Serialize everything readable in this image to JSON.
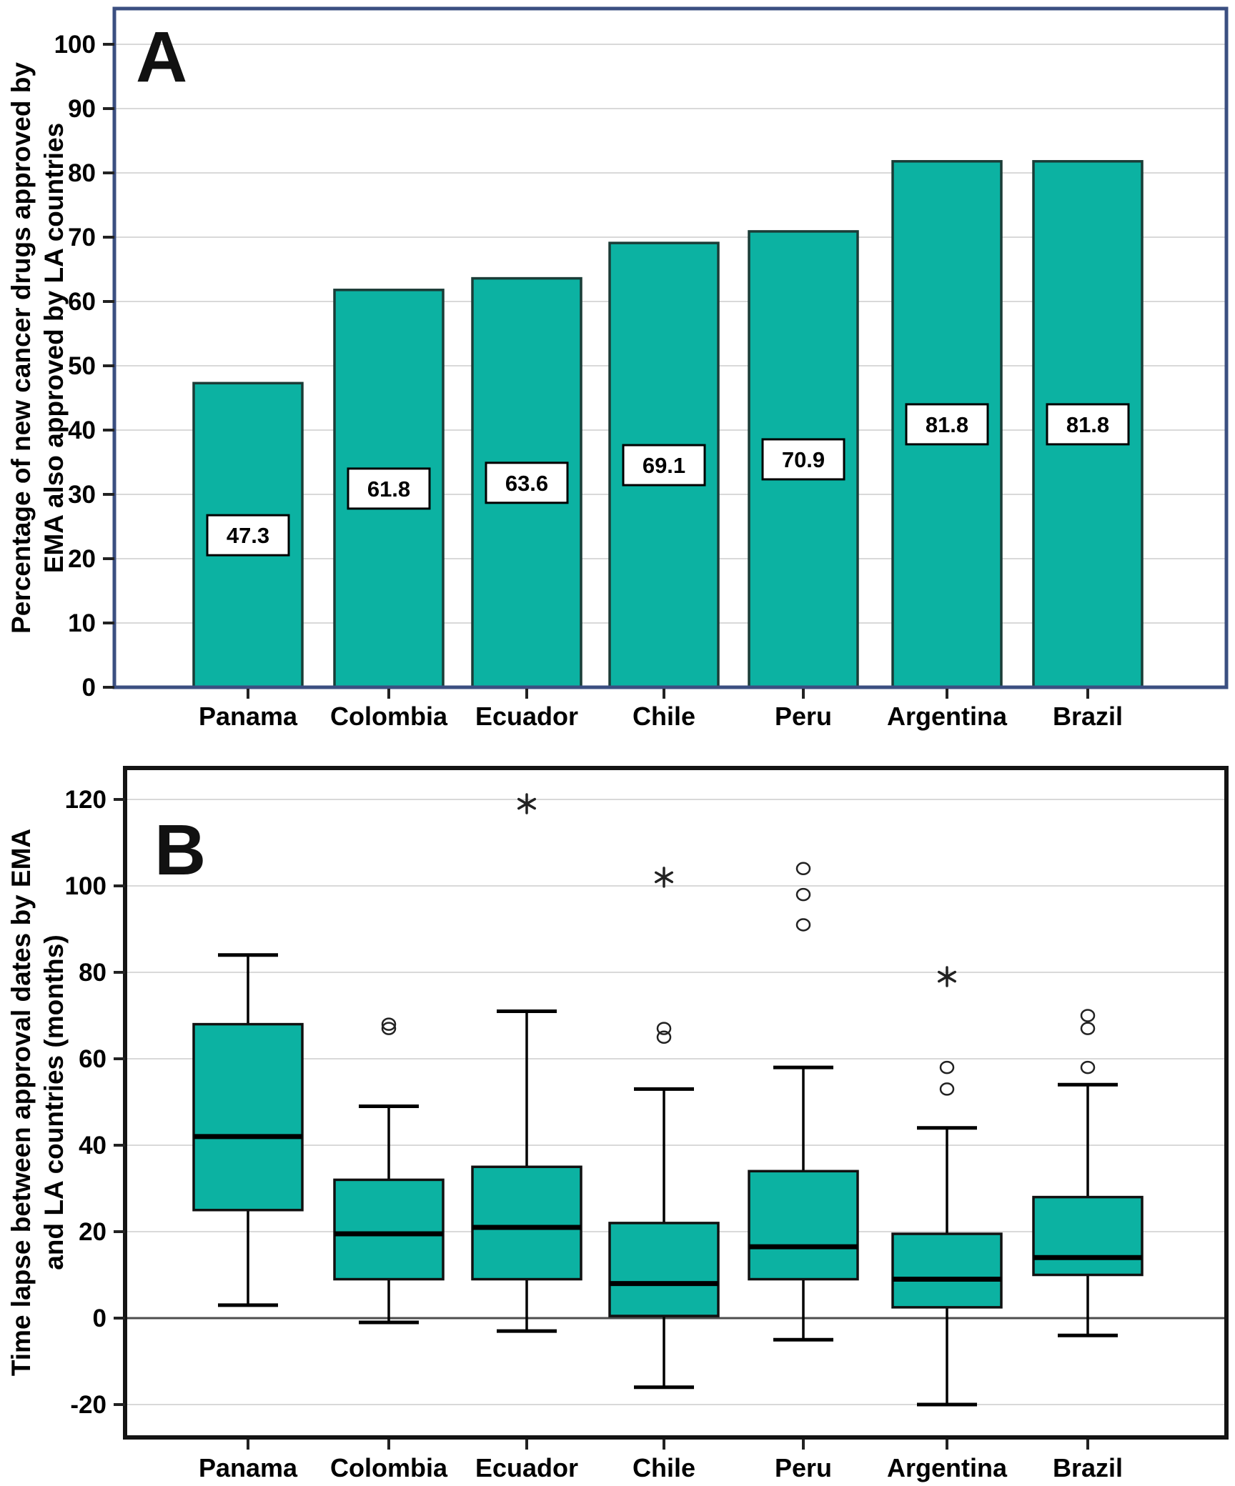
{
  "panels": {
    "a": {
      "letter": "A",
      "ylabel_line1": "Percentage of new cancer drugs approved by",
      "ylabel_line2": "EMA also approved by LA countries"
    },
    "b": {
      "letter": "B",
      "ylabel_line1": "Time lapse between approval dates by EMA",
      "ylabel_line2": "and LA countries (months)"
    }
  },
  "chart_data": [
    {
      "type": "bar",
      "panel": "A",
      "title": "Percentage of new cancer drugs approved by EMA also approved by LA countries",
      "categories": [
        "Panama",
        "Colombia",
        "Ecuador",
        "Chile",
        "Peru",
        "Argentina",
        "Brazil"
      ],
      "values": [
        47.3,
        61.8,
        63.6,
        69.1,
        70.9,
        81.8,
        81.8
      ],
      "bar_labels": [
        "47.3",
        "61.8",
        "63.6",
        "69.1",
        "70.9",
        "81.8",
        "81.8"
      ],
      "ylim": [
        0,
        105
      ],
      "yticks": [
        0,
        10,
        20,
        30,
        40,
        50,
        60,
        70,
        80,
        90,
        100
      ],
      "grid": true,
      "legend": "none"
    },
    {
      "type": "box",
      "panel": "B",
      "title": "Time lapse between approval dates by EMA and LA countries (months)",
      "categories": [
        "Panama",
        "Colombia",
        "Ecuador",
        "Chile",
        "Peru",
        "Argentina",
        "Brazil"
      ],
      "series": [
        {
          "name": "Panama",
          "whisker_low": 3,
          "q1": 25,
          "median": 42,
          "q3": 68,
          "whisker_high": 84,
          "outliers": [],
          "extremes": []
        },
        {
          "name": "Colombia",
          "whisker_low": -1,
          "q1": 9,
          "median": 19.5,
          "q3": 32,
          "whisker_high": 49,
          "outliers": [
            67,
            68
          ],
          "extremes": []
        },
        {
          "name": "Ecuador",
          "whisker_low": -3,
          "q1": 9,
          "median": 21,
          "q3": 35,
          "whisker_high": 71,
          "outliers": [],
          "extremes": [
            119
          ]
        },
        {
          "name": "Chile",
          "whisker_low": -16,
          "q1": 0.5,
          "median": 8,
          "q3": 22,
          "whisker_high": 53,
          "outliers": [
            65,
            67
          ],
          "extremes": [
            102
          ]
        },
        {
          "name": "Peru",
          "whisker_low": -5,
          "q1": 9,
          "median": 16.5,
          "q3": 34,
          "whisker_high": 58,
          "outliers": [
            91,
            98,
            104
          ],
          "extremes": []
        },
        {
          "name": "Argentina",
          "whisker_low": -20,
          "q1": 2.5,
          "median": 9,
          "q3": 19.5,
          "whisker_high": 44,
          "outliers": [
            53,
            58
          ],
          "extremes": [
            79
          ]
        },
        {
          "name": "Brazil",
          "whisker_low": -4,
          "q1": 10,
          "median": 14,
          "q3": 28,
          "whisker_high": 54,
          "outliers": [
            58,
            67,
            70
          ],
          "extremes": []
        }
      ],
      "ylim": [
        -28,
        127
      ],
      "yticks": [
        -20,
        0,
        20,
        40,
        60,
        80,
        100,
        120
      ],
      "grid": true,
      "legend": "none"
    }
  ],
  "colors": {
    "fill_teal": "#0cb2a2",
    "bar_stroke": "#1b3c37",
    "box_stroke": "#111111",
    "panel_a_border": "#3b4f81",
    "panel_b_border": "#141414",
    "gridline": "#d9d9d9",
    "zero_line": "#4d4d4d",
    "text": "#000000",
    "label_box_fill": "#ffffff"
  }
}
